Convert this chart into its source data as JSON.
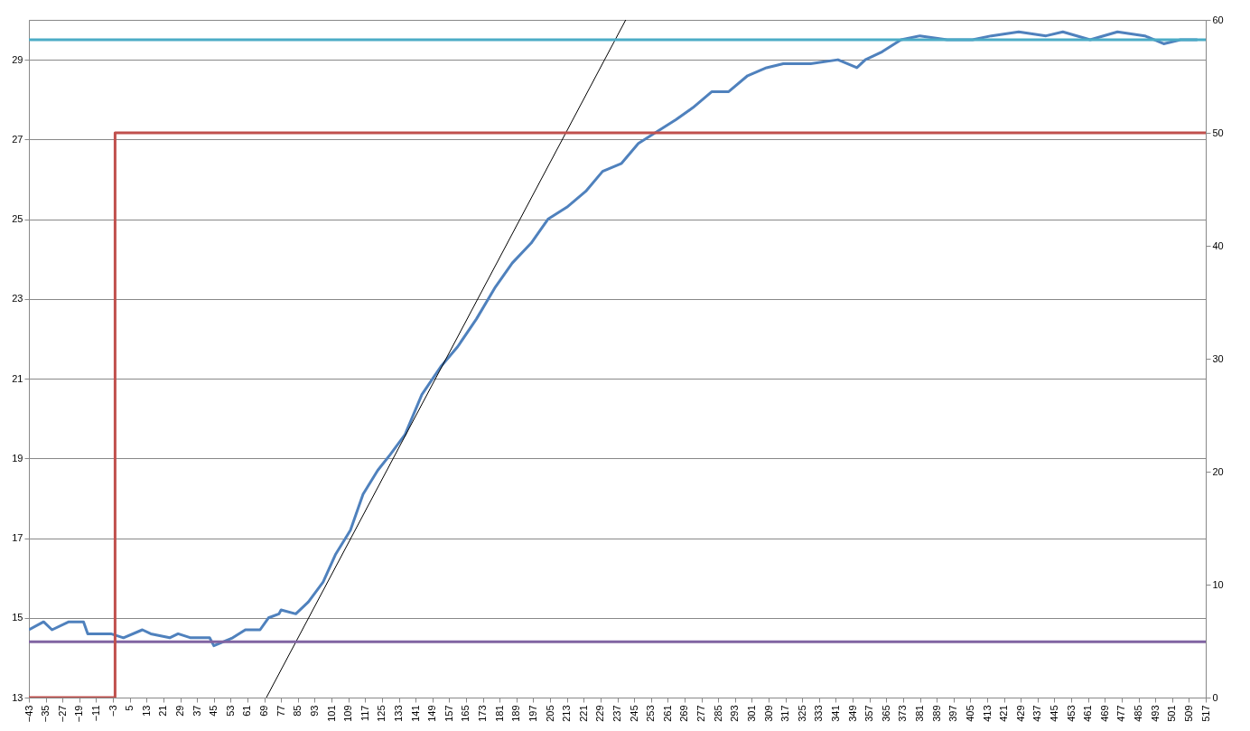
{
  "chart_data": {
    "type": "line",
    "series": [
      {
        "color": "#4f81bd",
        "x": [
          -43,
          -36,
          -32,
          -24,
          -17,
          -15,
          -4,
          2,
          11,
          15,
          24,
          28,
          34,
          43,
          45,
          54,
          60,
          67,
          71,
          76,
          77,
          84,
          90,
          97,
          103,
          110,
          116,
          123,
          129,
          136,
          144,
          153,
          161,
          170,
          179,
          187,
          196,
          204,
          213,
          222,
          230,
          239,
          247,
          256,
          265,
          273,
          282,
          290,
          299,
          308,
          316,
          329,
          342,
          351,
          355,
          363,
          372,
          381,
          394,
          406,
          415,
          428,
          441,
          449,
          462,
          475,
          488,
          497,
          505,
          513
        ],
        "values": [
          14.7,
          14.9,
          14.7,
          14.9,
          14.9,
          14.6,
          14.6,
          14.5,
          14.7,
          14.6,
          14.5,
          14.6,
          14.5,
          14.5,
          14.3,
          14.5,
          14.7,
          14.7,
          15.0,
          15.1,
          15.2,
          15.1,
          15.4,
          15.9,
          16.6,
          17.2,
          18.1,
          18.7,
          19.1,
          19.6,
          20.6,
          21.3,
          21.8,
          22.5,
          23.3,
          23.9,
          24.4,
          25.0,
          25.3,
          25.7,
          26.2,
          26.4,
          26.9,
          27.2,
          27.5,
          27.8,
          28.2,
          28.2,
          28.6,
          28.8,
          28.9,
          28.9,
          29.0,
          28.8,
          29.0,
          29.2,
          29.5,
          29.6,
          29.5,
          29.5,
          29.6,
          29.7,
          29.6,
          29.7,
          29.5,
          29.7,
          29.6,
          29.4,
          29.5,
          29.5
        ]
      },
      {
        "color": "#000000",
        "x": [
          70,
          241
        ],
        "values": [
          13,
          30
        ]
      },
      {
        "type": "step",
        "axis": "y2",
        "color": "#c0504d",
        "x": [
          -43,
          -2,
          517
        ],
        "values": [
          0,
          50,
          50
        ]
      }
    ],
    "ref_lines": [
      {
        "axis": "y",
        "value": 29.5,
        "color": "#4bacc6"
      },
      {
        "axis": "y",
        "value": 14.4,
        "color": "#8064a2"
      }
    ],
    "xlim": [
      -43,
      517
    ],
    "xticks": [
      -43,
      -35,
      -27,
      -19,
      -11,
      -3,
      5,
      13,
      21,
      29,
      37,
      45,
      53,
      61,
      69,
      77,
      85,
      93,
      101,
      109,
      117,
      125,
      133,
      141,
      149,
      157,
      165,
      173,
      181,
      189,
      197,
      205,
      213,
      221,
      229,
      237,
      245,
      253,
      261,
      269,
      277,
      285,
      293,
      301,
      309,
      317,
      325,
      333,
      341,
      349,
      357,
      365,
      373,
      381,
      389,
      397,
      405,
      413,
      421,
      429,
      437,
      445,
      453,
      461,
      469,
      477,
      485,
      493,
      501,
      509,
      517
    ],
    "ylim": [
      13,
      30
    ],
    "yticks": [
      13,
      15,
      17,
      19,
      21,
      23,
      25,
      27,
      29
    ],
    "y2lim": [
      0,
      60
    ],
    "y2ticks": [
      0,
      10,
      20,
      30,
      40,
      50,
      60
    ],
    "grid": "y",
    "marker": "none",
    "line_style": "solid"
  }
}
